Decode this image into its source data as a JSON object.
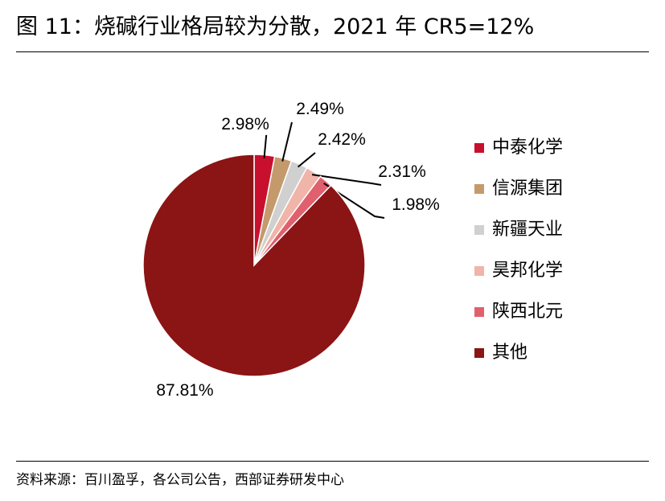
{
  "header": {
    "title": "图 11：烧碱行业格局较为分散，2021 年 CR5=12%"
  },
  "footer": {
    "source": "资料来源：百川盈孚，各公司公告，西部证券研发中心"
  },
  "chart_data": {
    "type": "pie",
    "title": "图 11：烧碱行业格局较为分散，2021 年 CR5=12%",
    "legend_position": "right",
    "slices": [
      {
        "label": "中泰化学",
        "value": 2.98,
        "value_label": "2.98%",
        "color": "#c8102e"
      },
      {
        "label": "信源集团",
        "value": 2.49,
        "value_label": "2.49%",
        "color": "#c49a6c"
      },
      {
        "label": "新疆天业",
        "value": 2.42,
        "value_label": "2.42%",
        "color": "#d0d0d0"
      },
      {
        "label": "昊邦化学",
        "value": 2.31,
        "value_label": "2.31%",
        "color": "#f0b4a8"
      },
      {
        "label": "陕西北元",
        "value": 1.98,
        "value_label": "1.98%",
        "color": "#e0606e"
      },
      {
        "label": "其他",
        "value": 87.81,
        "value_label": "87.81%",
        "color": "#8b1414"
      }
    ]
  }
}
